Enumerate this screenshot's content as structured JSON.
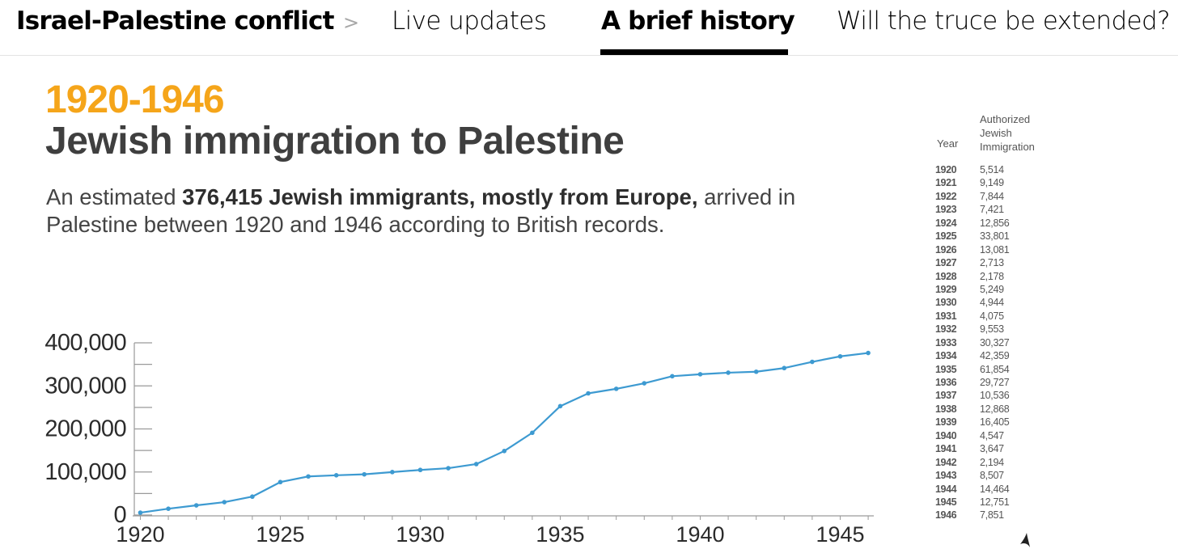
{
  "nav": {
    "section": "Israel-Palestine conflict",
    "separator": ">",
    "tabs": [
      {
        "label": "Live updates",
        "active": false
      },
      {
        "label": "A brief history",
        "active": true
      },
      {
        "label": "Will the truce be extended?",
        "active": false
      }
    ]
  },
  "infographic": {
    "years": "1920-1946",
    "title": "Jewish immigration to Palestine",
    "subtitle_lead": "An estimated ",
    "subtitle_bold": "376,415 Jewish immigrants, mostly from Europe,",
    "subtitle_rest": " arrived in Palestine between 1920 and 1946 according to British records."
  },
  "colors": {
    "accent": "#f5a51a",
    "line": "#3d9ad1",
    "title": "#3f3f3f"
  },
  "table": {
    "year_header": "Year",
    "value_header_lines": [
      "Authorized",
      "Jewish",
      "Immigration"
    ],
    "rows": [
      {
        "year": "1920",
        "value": "5,514"
      },
      {
        "year": "1921",
        "value": "9,149"
      },
      {
        "year": "1922",
        "value": "7,844"
      },
      {
        "year": "1923",
        "value": "7,421"
      },
      {
        "year": "1924",
        "value": "12,856"
      },
      {
        "year": "1925",
        "value": "33,801"
      },
      {
        "year": "1926",
        "value": "13,081"
      },
      {
        "year": "1927",
        "value": "2,713"
      },
      {
        "year": "1928",
        "value": "2,178"
      },
      {
        "year": "1929",
        "value": "5,249"
      },
      {
        "year": "1930",
        "value": "4,944"
      },
      {
        "year": "1931",
        "value": "4,075"
      },
      {
        "year": "1932",
        "value": "9,553"
      },
      {
        "year": "1933",
        "value": "30,327"
      },
      {
        "year": "1934",
        "value": "42,359"
      },
      {
        "year": "1935",
        "value": "61,854"
      },
      {
        "year": "1936",
        "value": "29,727"
      },
      {
        "year": "1937",
        "value": "10,536"
      },
      {
        "year": "1938",
        "value": "12,868"
      },
      {
        "year": "1939",
        "value": "16,405"
      },
      {
        "year": "1940",
        "value": "4,547"
      },
      {
        "year": "1941",
        "value": "3,647"
      },
      {
        "year": "1942",
        "value": "2,194"
      },
      {
        "year": "1943",
        "value": "8,507"
      },
      {
        "year": "1944",
        "value": "14,464"
      },
      {
        "year": "1945",
        "value": "12,751"
      },
      {
        "year": "1946",
        "value": "7,851"
      }
    ]
  },
  "chart_data": {
    "type": "line",
    "title": "Jewish immigration to Palestine",
    "xlabel": "",
    "ylabel": "",
    "x": [
      1920,
      1921,
      1922,
      1923,
      1924,
      1925,
      1926,
      1927,
      1928,
      1929,
      1930,
      1931,
      1932,
      1933,
      1934,
      1935,
      1936,
      1937,
      1938,
      1939,
      1940,
      1941,
      1942,
      1943,
      1944,
      1945,
      1946
    ],
    "series": [
      {
        "values": [
          5514,
          14663,
          22507,
          29928,
          42784,
          76585,
          89666,
          92379,
          94557,
          99806,
          104750,
          108825,
          118378,
          148705,
          191064,
          252918,
          282645,
          293181,
          306049,
          322454,
          327001,
          330648,
          332842,
          341349,
          355813,
          368564,
          376415
        ]
      }
    ],
    "xticks": [
      1920,
      1925,
      1930,
      1935,
      1940,
      1945
    ],
    "xtick_labels": [
      "1920",
      "1925",
      "1930",
      "1935",
      "1940",
      "1945"
    ],
    "yticks": [
      0,
      100000,
      200000,
      300000,
      400000
    ],
    "ytick_labels": [
      "0",
      "100,000",
      "200,000",
      "300,000",
      "400,000"
    ],
    "xlim": [
      1919.9,
      1946.2
    ],
    "ylim": [
      0,
      400000
    ],
    "grid": false,
    "legend": "none"
  }
}
